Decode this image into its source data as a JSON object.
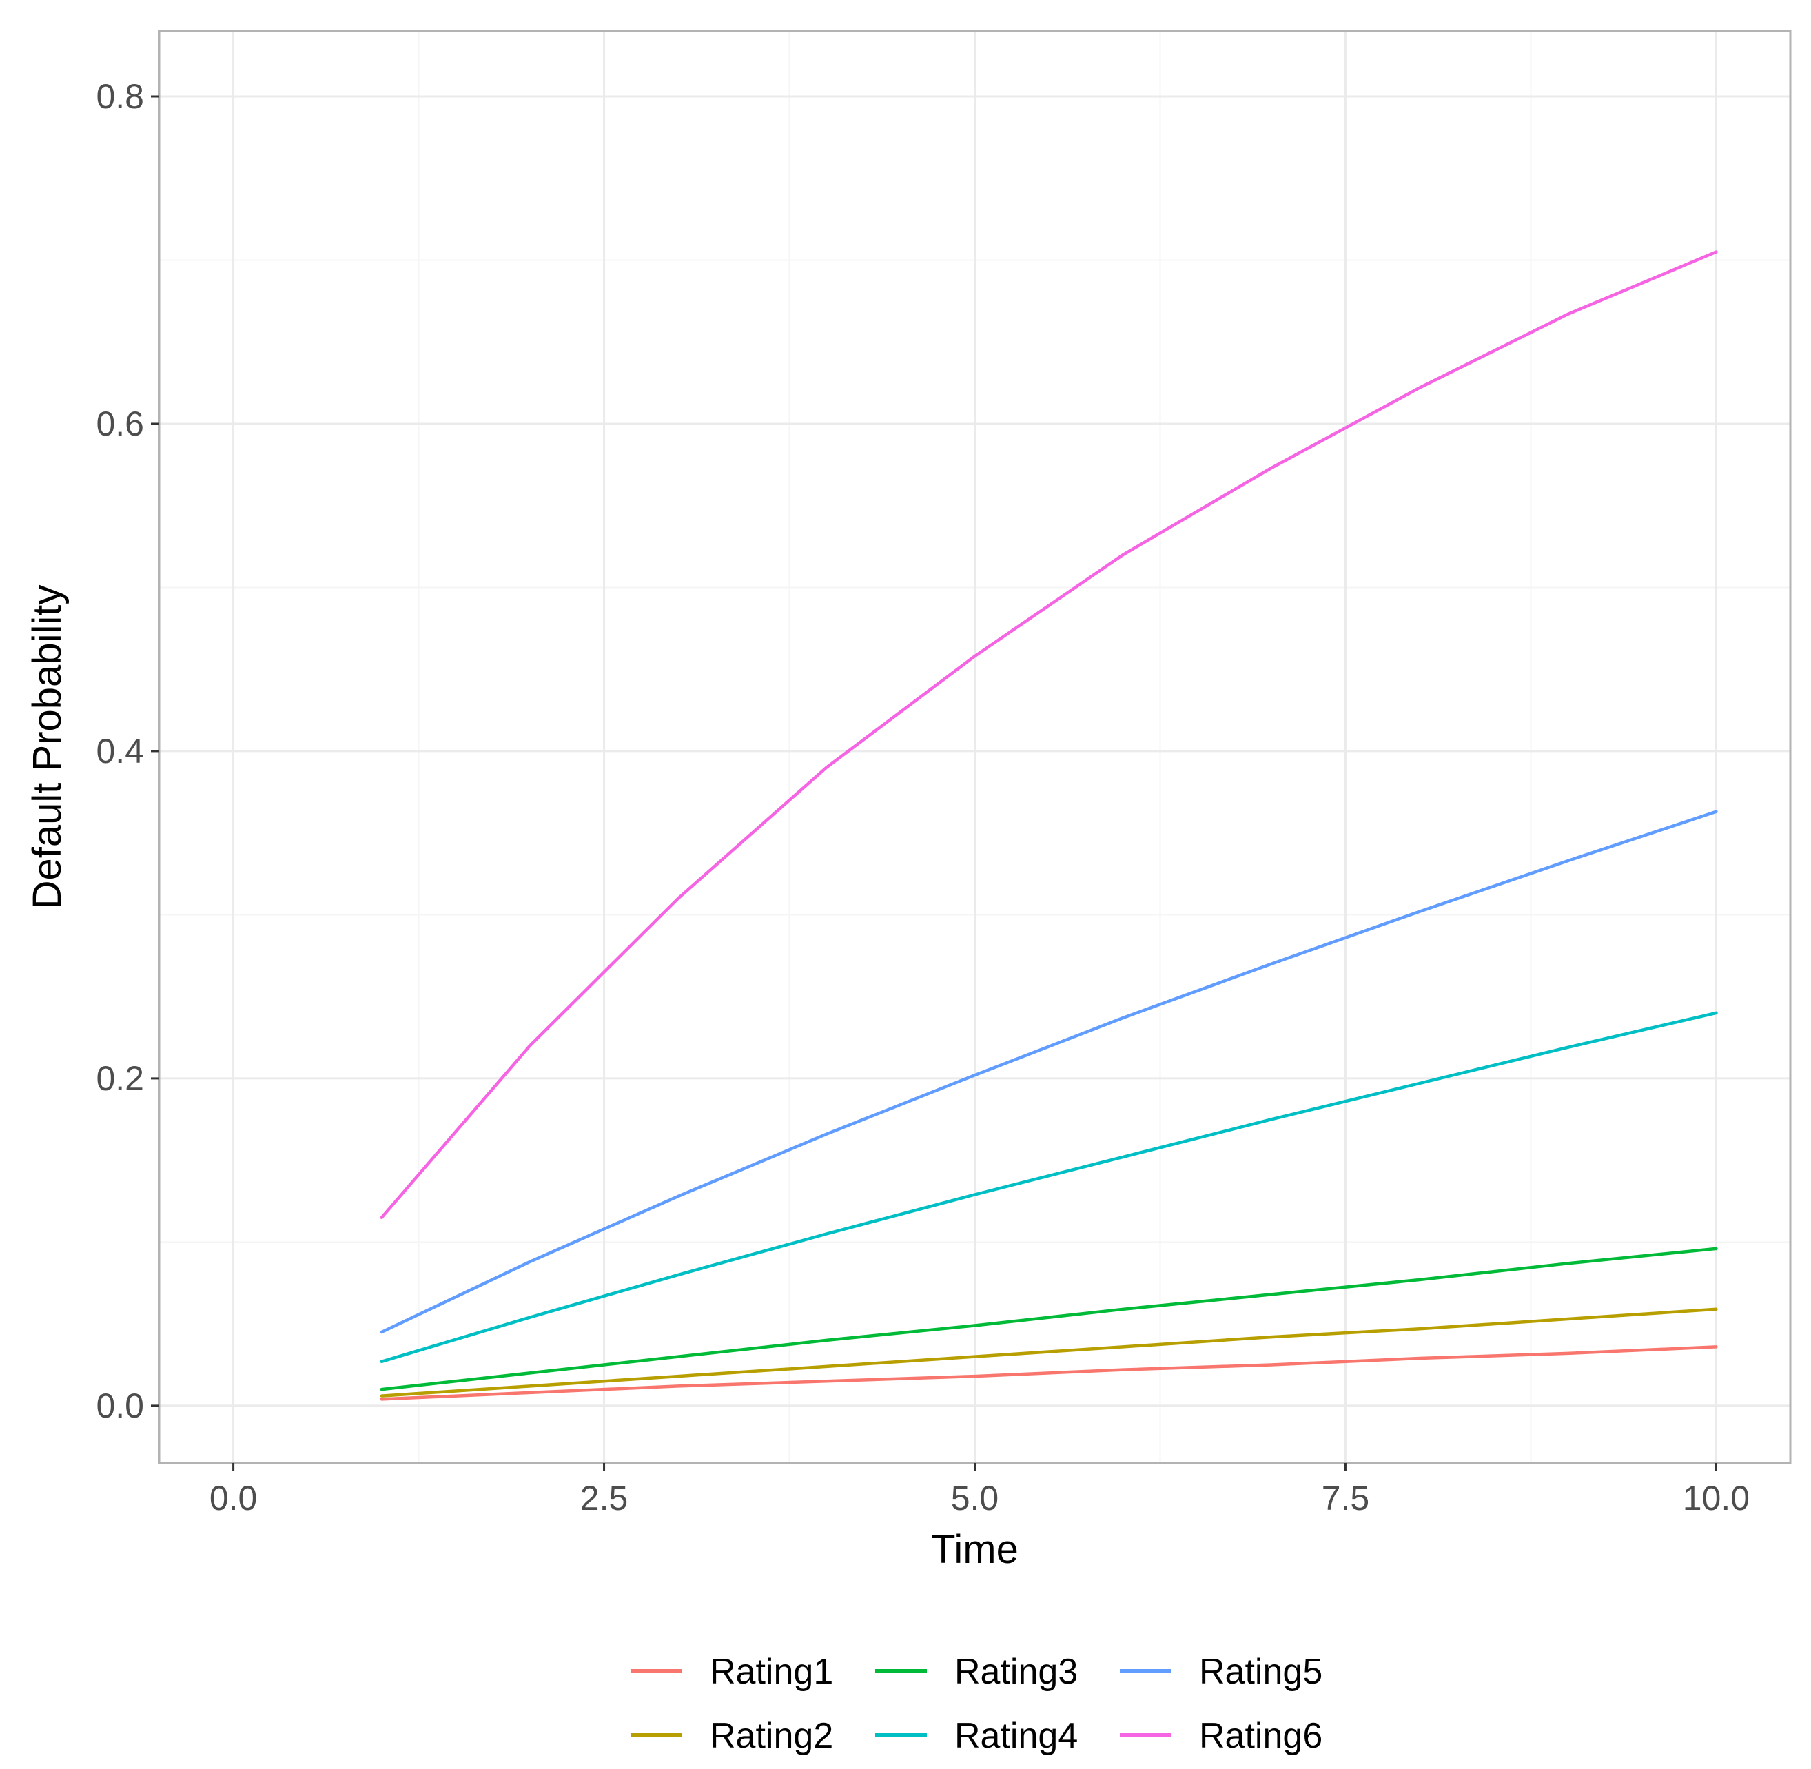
{
  "chart_data": {
    "type": "line",
    "xlabel": "Time",
    "ylabel": "Default Probability",
    "xlim": [
      -0.5,
      10.5
    ],
    "ylim": [
      -0.035,
      0.84
    ],
    "x_ticks": [
      0.0,
      2.5,
      5.0,
      7.5,
      10.0
    ],
    "x_tick_labels": [
      "0.0",
      "2.5",
      "5.0",
      "7.5",
      "10.0"
    ],
    "y_ticks": [
      0.0,
      0.2,
      0.4,
      0.6,
      0.8
    ],
    "y_tick_labels": [
      "0.0",
      "0.2",
      "0.4",
      "0.6",
      "0.8"
    ],
    "grid": true,
    "legend_position": "bottom",
    "x": [
      1,
      2,
      3,
      4,
      5,
      6,
      7,
      8,
      9,
      10
    ],
    "series": [
      {
        "name": "Rating1",
        "color": "#F8766D",
        "values": [
          0.004,
          0.008,
          0.012,
          0.015,
          0.018,
          0.022,
          0.025,
          0.029,
          0.032,
          0.036
        ]
      },
      {
        "name": "Rating2",
        "color": "#B79F00",
        "values": [
          0.006,
          0.012,
          0.018,
          0.024,
          0.03,
          0.036,
          0.042,
          0.047,
          0.053,
          0.059
        ]
      },
      {
        "name": "Rating3",
        "color": "#00BA38",
        "values": [
          0.01,
          0.02,
          0.03,
          0.04,
          0.049,
          0.059,
          0.068,
          0.077,
          0.087,
          0.096
        ]
      },
      {
        "name": "Rating4",
        "color": "#00BFC4",
        "values": [
          0.027,
          0.054,
          0.08,
          0.105,
          0.129,
          0.152,
          0.175,
          0.197,
          0.219,
          0.24
        ]
      },
      {
        "name": "Rating5",
        "color": "#619CFF",
        "values": [
          0.045,
          0.088,
          0.128,
          0.166,
          0.202,
          0.237,
          0.27,
          0.302,
          0.333,
          0.363
        ]
      },
      {
        "name": "Rating6",
        "color": "#F564E3",
        "values": [
          0.115,
          0.22,
          0.31,
          0.39,
          0.458,
          0.52,
          0.573,
          0.622,
          0.667,
          0.705
        ]
      }
    ]
  }
}
